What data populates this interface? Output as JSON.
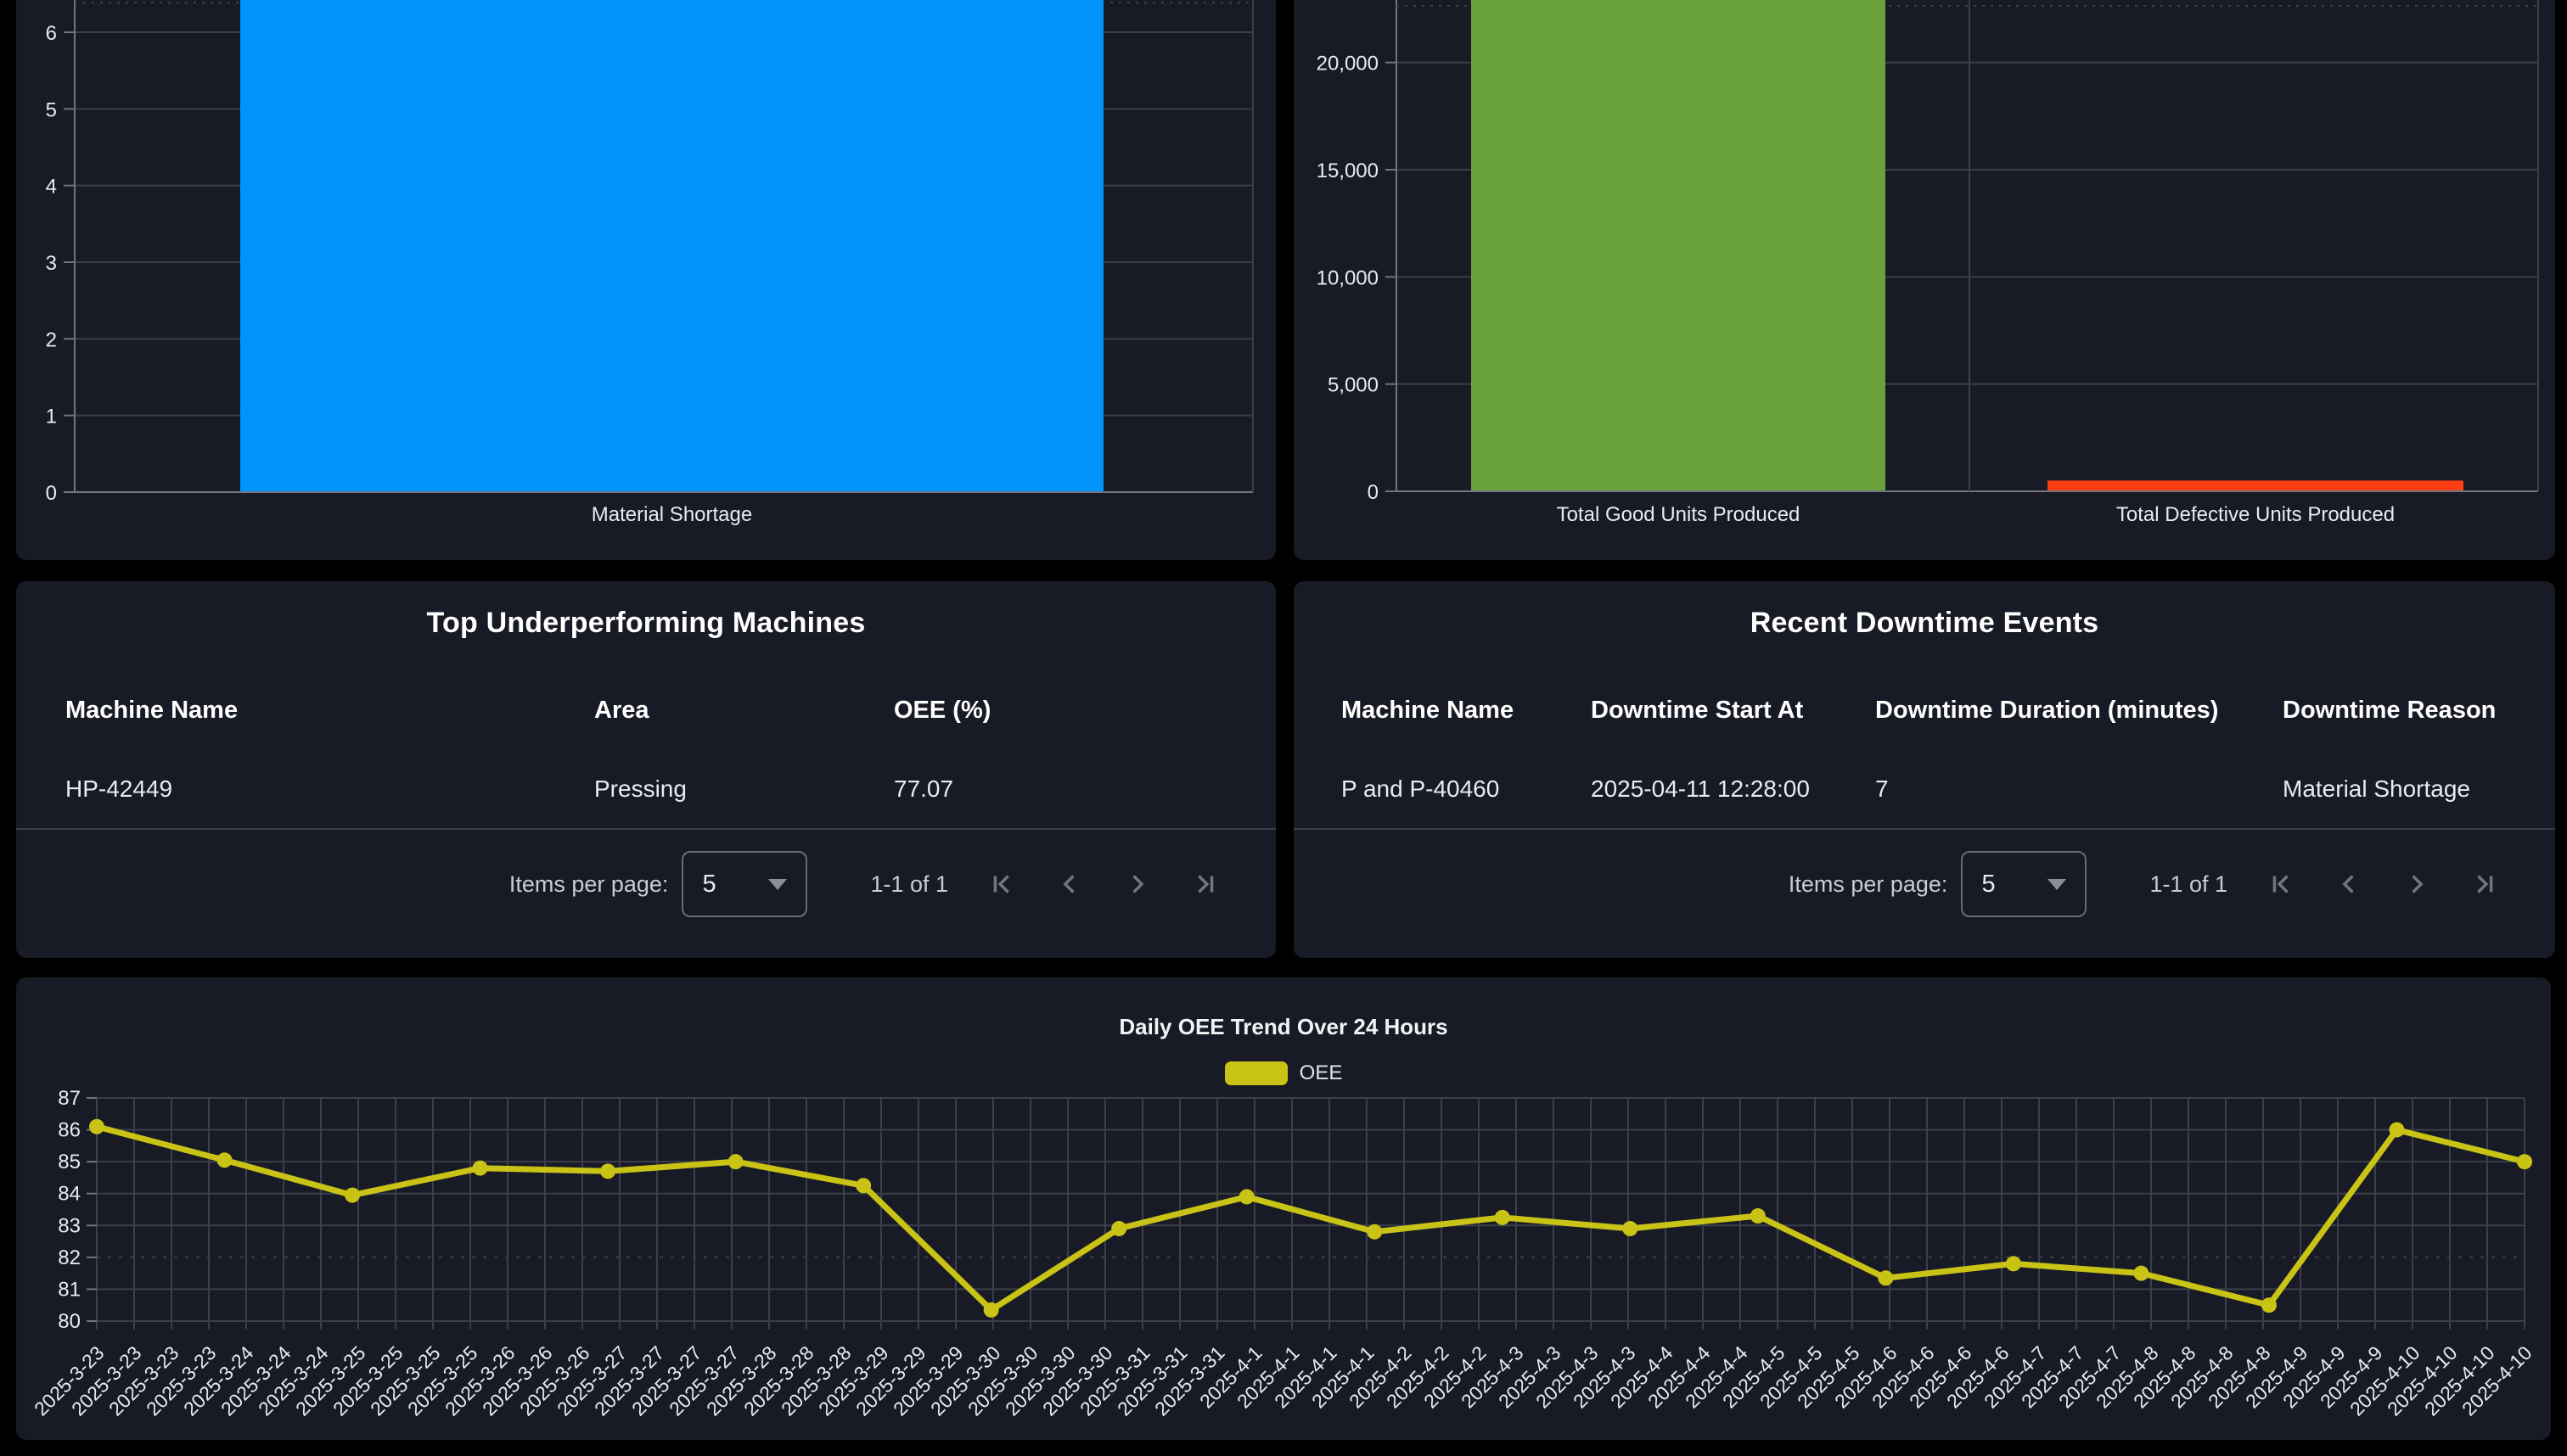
{
  "colors": {
    "page_bg": "#000000",
    "card_bg": "#181b26",
    "grid_line": "#3b3f49",
    "grid_line_bright": "#71757e",
    "axis_text": "#e9ebee",
    "text_primary": "#ffffff",
    "text_secondary": "#c9ccd2",
    "divider": "#3a3e48",
    "icon_disabled": "#70757f",
    "bar_blue": "#0195fc",
    "bar_green": "#69a23a",
    "bar_red": "#fb3e14",
    "line_yellow": "#c9c316"
  },
  "cards": {
    "underperforming": {
      "title": "Top Underperforming Machines",
      "columns": [
        "Machine Name",
        "Area",
        "OEE (%)"
      ],
      "rows": [
        [
          "HP-42449",
          "Pressing",
          "77.07"
        ]
      ]
    },
    "downtime_events": {
      "title": "Recent Downtime Events",
      "columns": [
        "Machine Name",
        "Downtime Start At",
        "Downtime Duration (minutes)",
        "Downtime Reason"
      ],
      "rows": [
        [
          "P and P-40460",
          "2025-04-11 12:28:00",
          "7",
          "Material Shortage"
        ]
      ]
    }
  },
  "paginator": {
    "items_per_page_label": "Items per page:",
    "page_size": "5",
    "range_label": "1-1 of 1",
    "buttons": [
      "first-page",
      "previous-page",
      "next-page",
      "last-page"
    ]
  },
  "chart_data": [
    {
      "id": "downtime-reasons",
      "type": "bar",
      "categories": [
        "Material Shortage"
      ],
      "values": [
        7
      ],
      "bar_colors": [
        "#0195fc"
      ],
      "yticks": [
        "0",
        "1",
        "2",
        "3",
        "4",
        "5",
        "6"
      ],
      "ytick_values": [
        0,
        1,
        2,
        3,
        4,
        5,
        6
      ],
      "ylim": [
        0,
        6.4
      ],
      "note_bar_clipped_at_top": true
    },
    {
      "id": "units-produced",
      "type": "bar",
      "categories": [
        "Total Good Units Produced",
        "Total Defective Units Produced"
      ],
      "values": [
        24000,
        500
      ],
      "bar_colors": [
        "#69a23a",
        "#fb3e14"
      ],
      "yticks": [
        "0",
        "5,000",
        "10,000",
        "15,000",
        "20,000"
      ],
      "ytick_values": [
        0,
        5000,
        10000,
        15000,
        20000
      ],
      "ylim": [
        0,
        22900
      ],
      "note_bar_clipped_at_top": true
    },
    {
      "id": "oee-trend",
      "type": "line",
      "title": "Daily OEE Trend Over 24 Hours",
      "legend": {
        "position": "top",
        "entries": [
          "OEE"
        ]
      },
      "ylim": [
        80,
        87
      ],
      "yticks": [
        "80",
        "81",
        "82",
        "83",
        "84",
        "85",
        "86",
        "87"
      ],
      "ytick_values": [
        80,
        81,
        82,
        83,
        84,
        85,
        86,
        87
      ],
      "series": [
        {
          "name": "OEE",
          "color": "#c9c316",
          "values": [
            86.1,
            85.05,
            83.95,
            84.8,
            84.7,
            85.0,
            84.25,
            80.35,
            82.9,
            83.9,
            82.8,
            83.25,
            82.9,
            83.3,
            81.35,
            81.8,
            81.5,
            80.5,
            86.0,
            85.0
          ]
        }
      ],
      "x_labels": [
        "2025-3-23",
        "2025-3-23",
        "2025-3-23",
        "2025-3-23",
        "2025-3-24",
        "2025-3-24",
        "2025-3-24",
        "2025-3-25",
        "2025-3-25",
        "2025-3-25",
        "2025-3-25",
        "2025-3-26",
        "2025-3-26",
        "2025-3-26",
        "2025-3-27",
        "2025-3-27",
        "2025-3-27",
        "2025-3-27",
        "2025-3-28",
        "2025-3-28",
        "2025-3-28",
        "2025-3-29",
        "2025-3-29",
        "2025-3-29",
        "2025-3-30",
        "2025-3-30",
        "2025-3-30",
        "2025-3-30",
        "2025-3-31",
        "2025-3-31",
        "2025-3-31",
        "2025-4-1",
        "2025-4-1",
        "2025-4-1",
        "2025-4-1",
        "2025-4-2",
        "2025-4-2",
        "2025-4-2",
        "2025-4-3",
        "2025-4-3",
        "2025-4-3",
        "2025-4-3",
        "2025-4-4",
        "2025-4-4",
        "2025-4-4",
        "2025-4-5",
        "2025-4-5",
        "2025-4-5",
        "2025-4-6",
        "2025-4-6",
        "2025-4-6",
        "2025-4-6",
        "2025-4-7",
        "2025-4-7",
        "2025-4-7",
        "2025-4-8",
        "2025-4-8",
        "2025-4-8",
        "2025-4-8",
        "2025-4-9",
        "2025-4-9",
        "2025-4-9",
        "2025-4-10",
        "2025-4-10",
        "2025-4-10",
        "2025-4-10"
      ]
    }
  ]
}
